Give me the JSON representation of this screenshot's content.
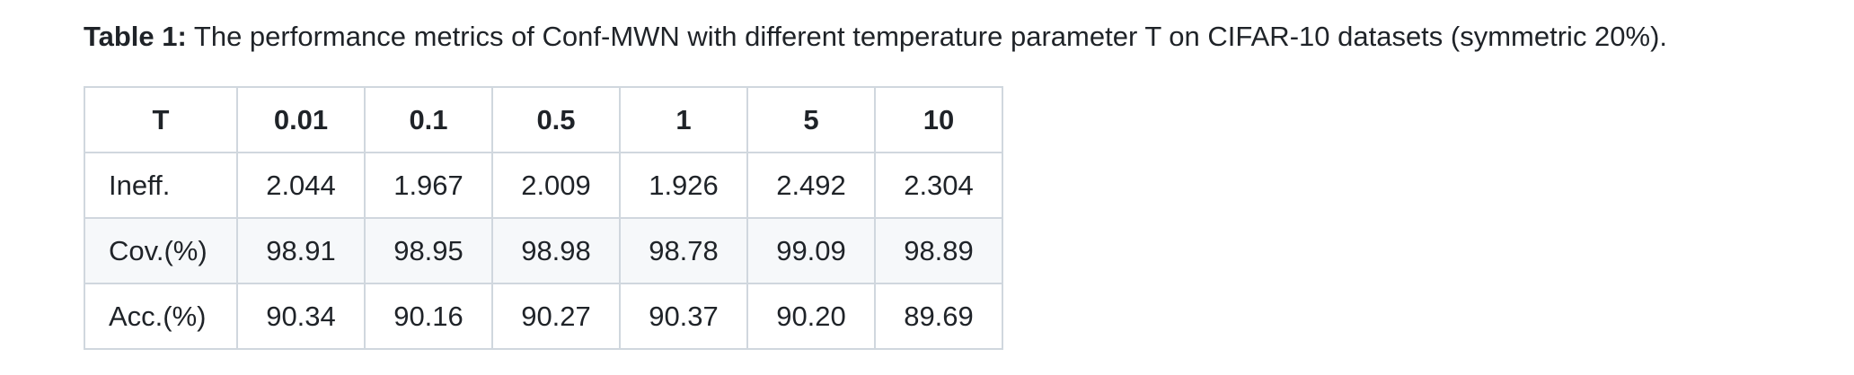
{
  "caption": {
    "lead": "Table 1:",
    "text": " The performance metrics of Conf-MWN with different temperature parameter T on CIFAR-10 datasets (symmetric 20%)."
  },
  "table": {
    "headers": [
      "T",
      "0.01",
      "0.1",
      "0.5",
      "1",
      "5",
      "10"
    ],
    "rows": [
      {
        "label": "Ineff.",
        "cells": [
          "2.044",
          "1.967",
          "2.009",
          "1.926",
          "2.492",
          "2.304"
        ]
      },
      {
        "label": "Cov.(%)",
        "cells": [
          "98.91",
          "98.95",
          "98.98",
          "98.78",
          "99.09",
          "98.89"
        ]
      },
      {
        "label": "Acc.(%)",
        "cells": [
          "90.34",
          "90.16",
          "90.27",
          "90.37",
          "90.20",
          "89.69"
        ]
      }
    ]
  },
  "colors": {
    "text": "#1f2328",
    "border": "#d0d7de",
    "stripe": "#f6f8fa"
  }
}
